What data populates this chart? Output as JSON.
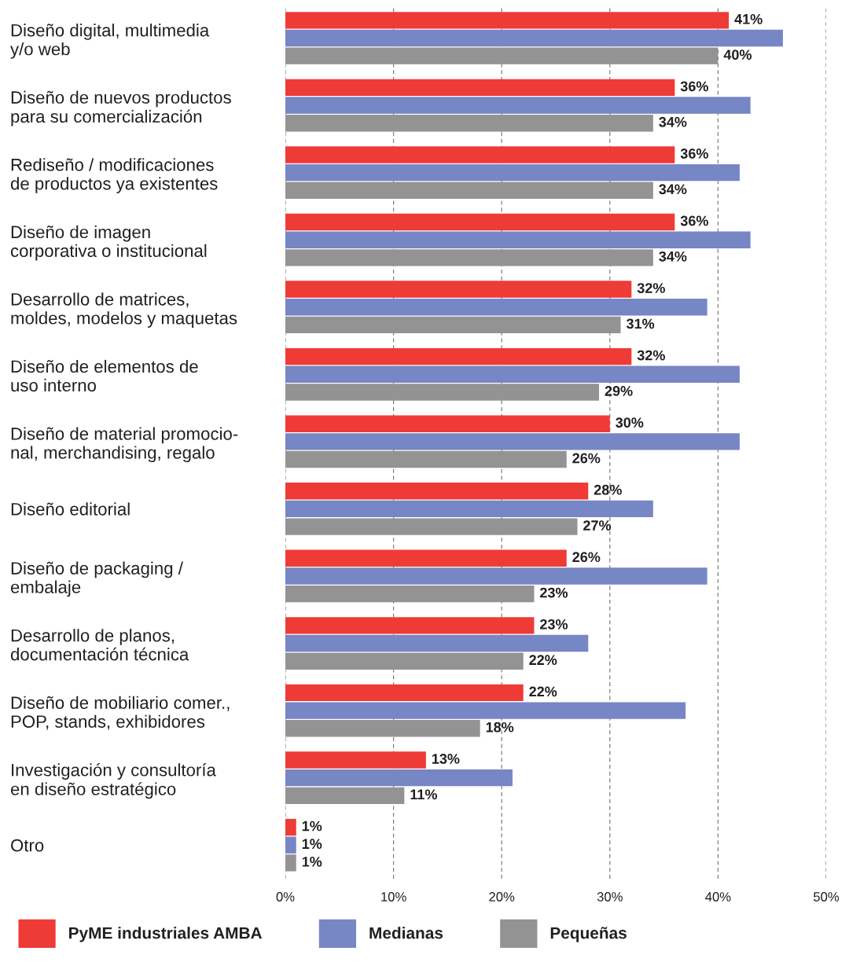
{
  "chart_data": {
    "type": "bar",
    "orientation": "horizontal",
    "categories": [
      "Diseño digital, multimedia\ny/o web",
      "Diseño de nuevos productos\npara su comercialización",
      "Rediseño / modificaciones\nde productos ya existentes",
      "Diseño de imagen\ncorporativa o institucional",
      "Desarrollo de matrices,\nmoldes, modelos y maquetas",
      "Diseño de elementos de\nuso interno",
      "Diseño de material promocio-\nnal, merchandising, regalo",
      "Diseño editorial",
      "Diseño de packaging /\nembalaje",
      "Desarrollo de planos,\ndocumentación técnica",
      "Diseño de mobiliario comer.,\nPOP, stands, exhibidores",
      "Investigación y consultoría\nen diseño estratégico",
      "Otro"
    ],
    "series": [
      {
        "name": "PyME industriales AMBA",
        "color": "#ef3b36",
        "values": [
          41,
          36,
          36,
          36,
          32,
          32,
          30,
          28,
          26,
          23,
          22,
          13,
          1
        ],
        "value_labels": [
          "41%",
          "36%",
          "36%",
          "36%",
          "32%",
          "32%",
          "30%",
          "28%",
          "26%",
          "23%",
          "22%",
          "13%",
          "1%"
        ]
      },
      {
        "name": "Medianas",
        "color": "#7786c4",
        "values": [
          46,
          43,
          42,
          43,
          39,
          42,
          42,
          34,
          39,
          28,
          37,
          21,
          1
        ],
        "value_labels": [
          null,
          null,
          null,
          null,
          null,
          null,
          null,
          null,
          null,
          null,
          null,
          null,
          "1%"
        ]
      },
      {
        "name": "Pequeñas",
        "color": "#939393",
        "values": [
          40,
          34,
          34,
          34,
          31,
          29,
          26,
          27,
          23,
          22,
          18,
          11,
          1
        ],
        "value_labels": [
          "40%",
          "34%",
          "34%",
          "34%",
          "31%",
          "29%",
          "26%",
          "27%",
          "23%",
          "22%",
          "18%",
          "11%",
          "1%"
        ]
      }
    ],
    "xlim": [
      0,
      50
    ],
    "xticks": [
      {
        "value": 0,
        "label": "0%"
      },
      {
        "value": 10,
        "label": "10%"
      },
      {
        "value": 20,
        "label": "20%"
      },
      {
        "value": 30,
        "label": "30%"
      },
      {
        "value": 40,
        "label": "40%"
      },
      {
        "value": 50,
        "label": "50%"
      }
    ],
    "grid": "x",
    "legend": "bottom"
  }
}
